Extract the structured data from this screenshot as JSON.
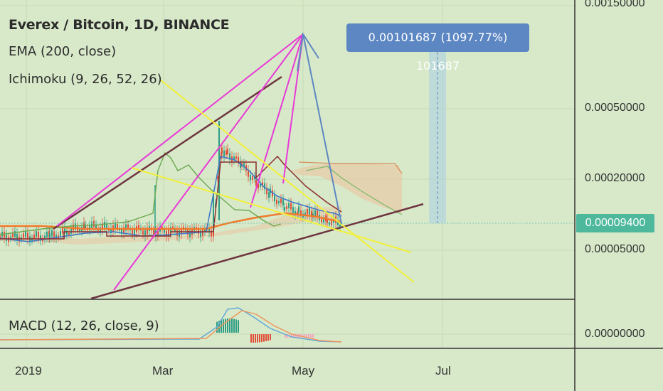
{
  "legend": {
    "title": "Everex / Bitcoin, 1D, BINANCE",
    "ema": "EMA (200, close)",
    "ichimoku": "Ichimoku (9, 26, 52, 26)",
    "macd": "MACD (12, 26, close, 9)"
  },
  "measure_label": "0.00101687 (1097.77%) 101687",
  "price_tag": "0.00009400",
  "colors": {
    "background": "#d8e9c9",
    "candle_up": "#2e9d84",
    "candle_down": "#e0503a",
    "ema": "#f07a2a",
    "tenkan": "#3c78c8",
    "kijun": "#8b2e2e",
    "chikou": "#6aa84f",
    "cloud": "#e8c9a5",
    "trend_brown": "#6e3540",
    "trend_magenta": "#e83ad6",
    "trend_yellow": "#f2ef3a",
    "projection_blue": "#5d87c3",
    "price_tag": "#4db89c"
  },
  "chart_data": {
    "type": "line",
    "title": "Everex / Bitcoin, 1D, BINANCE",
    "scale": "log",
    "y_ticks": [
      "0.00150000",
      "0.00050000",
      "0.00020000",
      "0.00005000"
    ],
    "x_ticks": [
      "2019",
      "Mar",
      "May",
      "Jul"
    ],
    "last_price": "0.00009400",
    "measurement": "0.00101687 (1097.77%) 101687",
    "macd_y_ticks": [
      "0.00000000"
    ],
    "series": [
      {
        "name": "EMA (200, close)"
      },
      {
        "name": "Ichimoku (9, 26, 52, 26)"
      },
      {
        "name": "MACD (12, 26, close, 9)"
      }
    ]
  }
}
